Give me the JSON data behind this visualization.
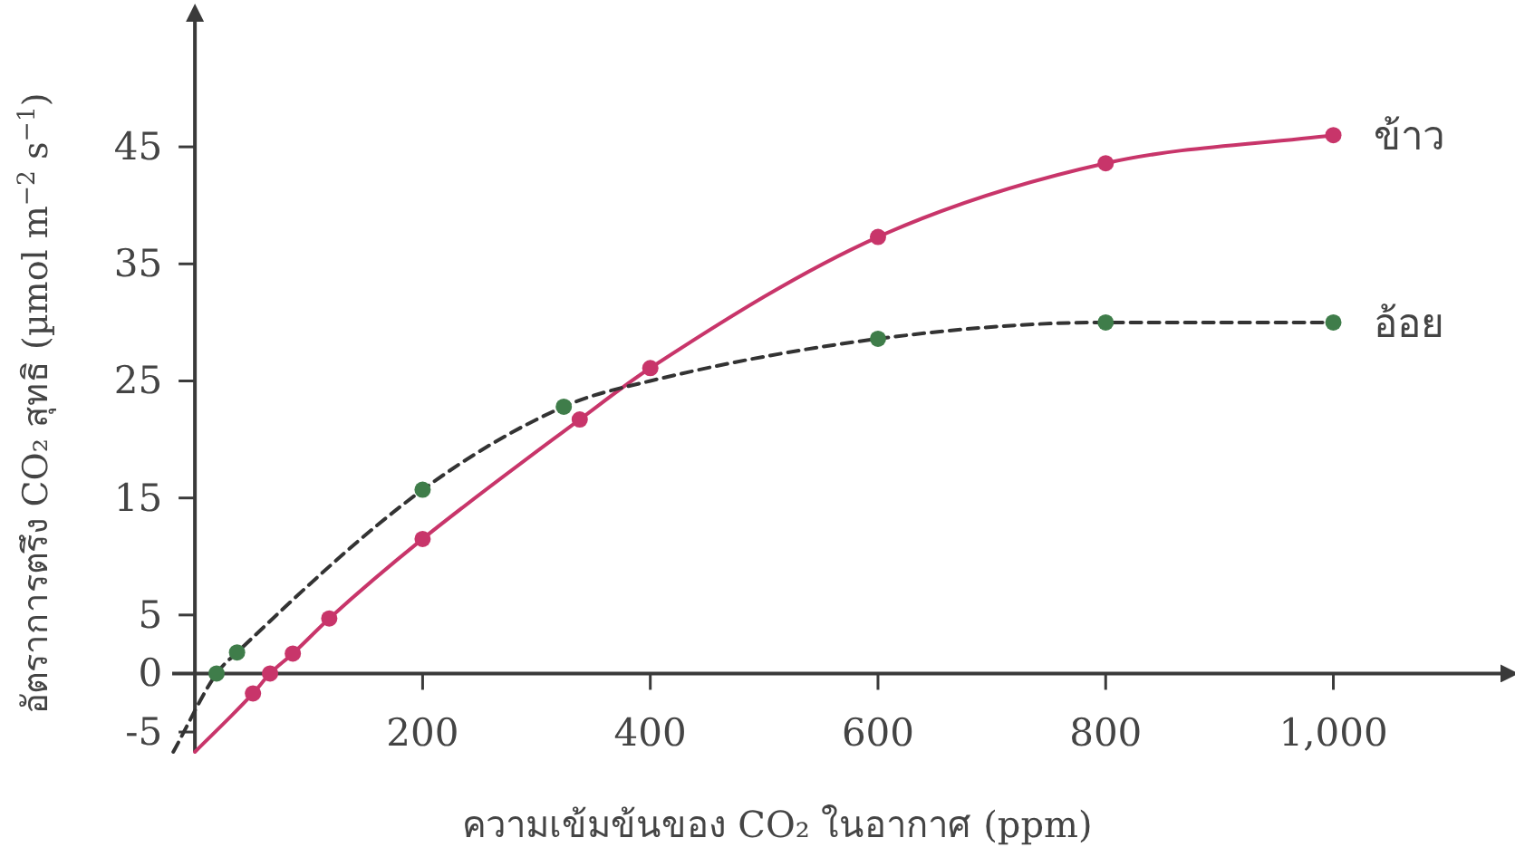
{
  "chart_data": {
    "type": "line",
    "xlabel": "ความเข้มข้นของ CO₂ ในอากาศ (ppm)",
    "ylabel": "อัตราการตรึง CO₂ สุทธิ (µmol m$^{−2}$ s$^{−1}$)",
    "xlim": [
      -20,
      1150
    ],
    "ylim": [
      -6.7,
      56
    ],
    "xticks": [
      200,
      400,
      600,
      800,
      {
        "value": 1000,
        "label": "1,000"
      }
    ],
    "yticks": [
      -5,
      0,
      5,
      15,
      25,
      35,
      45
    ],
    "grid": false,
    "series": [
      {
        "name": "ข้าว",
        "type": "line",
        "color": "#c8356a",
        "line_style": "solid",
        "marker": "none",
        "x": [
          0,
          51,
          66,
          86,
          118,
          200,
          338,
          400,
          600,
          800,
          1000
        ],
        "values": [
          -6.7,
          -1.7,
          0,
          1.7,
          4.7,
          11.5,
          21.7,
          26.1,
          37.3,
          43.6,
          46
        ]
      },
      {
        "name": "อ้อย",
        "type": "line",
        "color": "#333333",
        "line_style": "dashed",
        "marker": "none",
        "x": [
          -19,
          19,
          37,
          200,
          324,
          400,
          600,
          800,
          1000
        ],
        "values": [
          -6.7,
          0,
          1.8,
          15.7,
          22.8,
          25,
          28.6,
          30,
          30
        ]
      },
      {
        "type": "scatter",
        "color": "#c8356a",
        "marker": "circle",
        "x": [
          51,
          66,
          86,
          118,
          200,
          338,
          400,
          600,
          800,
          1000
        ],
        "values": [
          -1.7,
          0,
          1.7,
          4.7,
          11.5,
          21.7,
          26.1,
          37.3,
          43.6,
          46
        ]
      },
      {
        "type": "scatter",
        "color": "#3f7d4a",
        "marker": "circle",
        "x": [
          19,
          37,
          200,
          324,
          600,
          800,
          1000
        ],
        "values": [
          0,
          1.8,
          15.7,
          22.8,
          28.6,
          30,
          30
        ]
      }
    ]
  }
}
